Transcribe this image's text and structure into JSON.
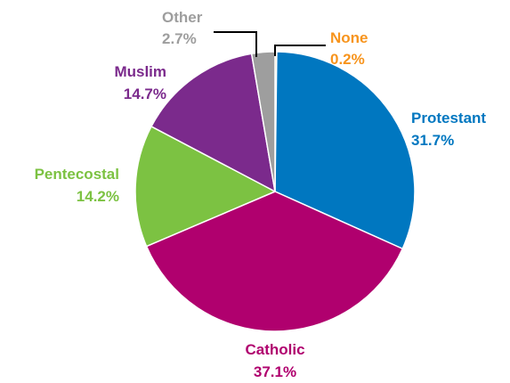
{
  "chart_data": {
    "type": "pie",
    "title": "",
    "slices": [
      {
        "label": "None",
        "value_text": "0.2%",
        "value": 0.2,
        "color": "#F7941D"
      },
      {
        "label": "Protestant",
        "value_text": "31.7%",
        "value": 31.7,
        "color": "#0077C0"
      },
      {
        "label": "Catholic",
        "value_text": "37.1%",
        "value": 37.1,
        "color": "#B0006E"
      },
      {
        "label": "Pentecostal",
        "value_text": "14.2%",
        "value": 14.2,
        "color": "#7CC242"
      },
      {
        "label": "Muslim",
        "value_text": "14.7%",
        "value": 14.7,
        "color": "#7B2A8C"
      },
      {
        "label": "Other",
        "value_text": "2.7%",
        "value": 2.7,
        "color": "#9E9E9E"
      }
    ],
    "start": "12 o'clock",
    "direction": "clockwise",
    "legend": "none",
    "leader_line_color": "#000000"
  }
}
